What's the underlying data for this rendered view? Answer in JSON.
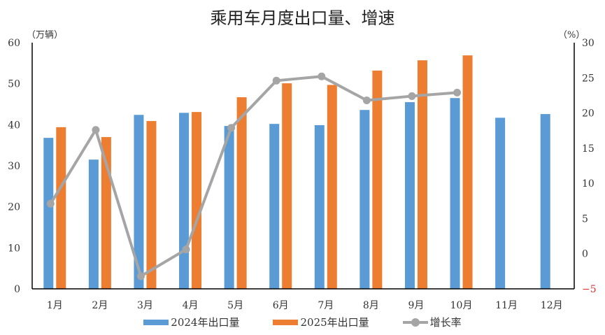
{
  "title": "乘用车月度出口量、增速",
  "left_axis_unit": "（万辆）",
  "right_axis_unit": "（%）",
  "colors": {
    "series_2024": "#5b9bd5",
    "series_2025": "#ed7d31",
    "growth": "#a5a5a5",
    "negative_tick": "#e0302d"
  },
  "legend": [
    {
      "label": "2024年出口量",
      "type": "bar",
      "color": "#5b9bd5"
    },
    {
      "label": "2025年出口量",
      "type": "bar",
      "color": "#ed7d31"
    },
    {
      "label": "增长率",
      "type": "line",
      "color": "#a5a5a5"
    }
  ],
  "chart_data": {
    "type": "bar+line",
    "title": "乘用车月度出口量、增速",
    "categories": [
      "1月",
      "2月",
      "3月",
      "4月",
      "5月",
      "6月",
      "7月",
      "8月",
      "9月",
      "10月",
      "11月",
      "12月"
    ],
    "series": [
      {
        "name": "2024年出口量",
        "type": "bar",
        "axis": "left",
        "values": [
          36.8,
          31.5,
          42.4,
          42.9,
          39.7,
          40.2,
          39.9,
          43.6,
          45.5,
          46.5,
          41.7,
          42.6
        ]
      },
      {
        "name": "2025年出口量",
        "type": "bar",
        "axis": "left",
        "values": [
          39.4,
          37.0,
          40.9,
          43.1,
          46.7,
          50.1,
          49.7,
          53.2,
          55.7,
          56.9,
          null,
          null
        ]
      },
      {
        "name": "增长率",
        "type": "line",
        "axis": "right",
        "values": [
          7.1,
          17.6,
          -3.2,
          0.6,
          17.9,
          24.6,
          25.2,
          21.8,
          22.4,
          22.9,
          null,
          null
        ]
      }
    ],
    "ylabel_left": "（万辆）",
    "ylabel_right": "（%）",
    "ylim_left": [
      0,
      60
    ],
    "yticks_left": [
      0,
      10,
      20,
      30,
      40,
      50,
      60
    ],
    "ylim_right": [
      -5,
      30
    ],
    "yticks_right": [
      -5,
      0,
      5,
      10,
      15,
      20,
      25,
      30
    ],
    "grid": false,
    "legend_position": "bottom"
  }
}
